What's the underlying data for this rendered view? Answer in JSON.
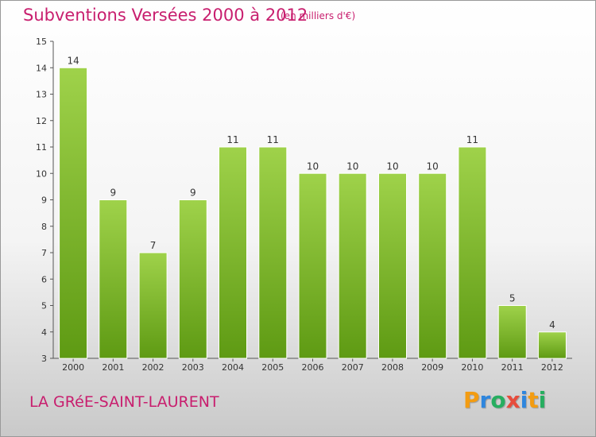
{
  "header": {
    "title": "Subventions Versées 2000 à 2012",
    "unit": "(en milliers d'€)"
  },
  "footer": {
    "commune": "LA GRéE-SAINT-LAURENT",
    "brand": {
      "text": "Proxiti",
      "letters": [
        {
          "char": "P",
          "color": "#f39c12"
        },
        {
          "char": "r",
          "color": "#2e86de"
        },
        {
          "char": "o",
          "color": "#27ae60"
        },
        {
          "char": "x",
          "color": "#e74c3c"
        },
        {
          "char": "i",
          "color": "#2e86de"
        },
        {
          "char": "t",
          "color": "#f39c12"
        },
        {
          "char": "i",
          "color": "#27ae60"
        }
      ]
    }
  },
  "colors": {
    "accent": "#c81e6e",
    "bar_top": "#9fd24a",
    "bar_bottom": "#5e9a13",
    "axis": "#555555"
  },
  "chart_data": {
    "type": "bar",
    "title": "Subventions Versées 2000 à 2012",
    "xlabel": "",
    "ylabel": "",
    "categories": [
      "2000",
      "2001",
      "2002",
      "2003",
      "2004",
      "2005",
      "2006",
      "2007",
      "2008",
      "2009",
      "2010",
      "2011",
      "2012"
    ],
    "values": [
      14,
      9,
      7,
      9,
      11,
      11,
      10,
      10,
      10,
      10,
      11,
      5,
      4
    ],
    "ylim": [
      3,
      15
    ],
    "yticks": [
      3,
      4,
      5,
      6,
      7,
      8,
      9,
      10,
      11,
      12,
      13,
      14,
      15
    ],
    "grid": false,
    "legend": "none"
  }
}
